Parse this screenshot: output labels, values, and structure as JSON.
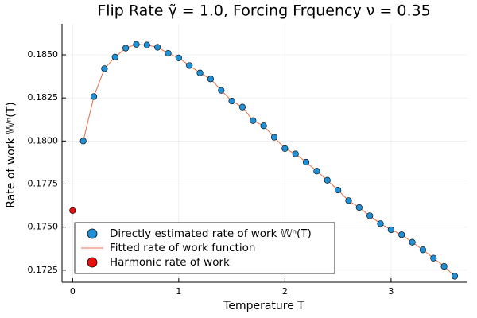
{
  "chart_data": {
    "type": "scatter",
    "title": "Flip Rate γ̃ = 1.0, Forcing Frquency ν = 0.35",
    "x_label": "Temperature T",
    "y_label": "Rate of work 𝕎ⁿ(T)",
    "xlim": [
      -0.1,
      3.72
    ],
    "ylim": [
      0.1718,
      0.1868
    ],
    "xticks": [
      0,
      1,
      2,
      3
    ],
    "yticks": [
      0.1725,
      {
        "value": 0.175,
        "label": "0.1750"
      },
      0.1775,
      {
        "value": 0.18,
        "label": "0.1800"
      },
      0.1825,
      {
        "value": 0.185,
        "label": "0.1850"
      }
    ],
    "grid": true,
    "legend": "bottom-left",
    "series": [
      {
        "name": "Directly estimated rate of work 𝕎ⁿ(T)",
        "color": "#1f8fd6",
        "style": "marker",
        "x": [
          0.1,
          0.2,
          0.3,
          0.4,
          0.5,
          0.6,
          0.7,
          0.8,
          0.9,
          1.0,
          1.1,
          1.2,
          1.3,
          1.4,
          1.5,
          1.6,
          1.7,
          1.8,
          1.9,
          2.0,
          2.1,
          2.2,
          2.3,
          2.4,
          2.5,
          2.6,
          2.7,
          2.8,
          2.9,
          3.0,
          3.1,
          3.2,
          3.3,
          3.4,
          3.5,
          3.6
        ],
        "values": [
          0.18,
          0.18258,
          0.1842,
          0.18487,
          0.18539,
          0.18561,
          0.18557,
          0.18544,
          0.18509,
          0.18482,
          0.18438,
          0.18395,
          0.1836,
          0.18294,
          0.18232,
          0.18197,
          0.18118,
          0.18088,
          0.18022,
          0.17956,
          0.17925,
          0.17877,
          0.17825,
          0.17772,
          0.17715,
          0.17654,
          0.17614,
          0.17566,
          0.1752,
          0.17485,
          0.17456,
          0.17412,
          0.17368,
          0.1732,
          0.17272,
          0.17215
        ]
      },
      {
        "name": "Fitted rate of work function",
        "color": "#e26f46",
        "style": "line",
        "x": [
          0.1,
          0.2,
          0.3,
          0.4,
          0.5,
          0.6,
          0.7,
          0.8,
          0.9,
          1.0,
          1.1,
          1.2,
          1.3,
          1.4,
          1.5,
          1.6,
          1.7,
          1.8,
          1.9,
          2.0,
          2.1,
          2.2,
          2.3,
          2.4,
          2.5,
          2.6,
          2.7,
          2.8,
          2.9,
          3.0,
          3.1,
          3.2,
          3.3,
          3.4,
          3.5,
          3.6
        ],
        "values": [
          0.18,
          0.18258,
          0.1842,
          0.18487,
          0.18539,
          0.18561,
          0.18557,
          0.18544,
          0.18509,
          0.18482,
          0.18438,
          0.18395,
          0.1836,
          0.18294,
          0.18232,
          0.18197,
          0.18118,
          0.18088,
          0.18022,
          0.17956,
          0.17925,
          0.17877,
          0.17825,
          0.17772,
          0.17715,
          0.17654,
          0.17614,
          0.17566,
          0.1752,
          0.17485,
          0.17456,
          0.17412,
          0.17368,
          0.1732,
          0.17272,
          0.17215
        ]
      },
      {
        "name": "Harmonic rate of work",
        "color": "#e8100c",
        "style": "marker",
        "x": [
          0
        ],
        "values": [
          0.17596
        ]
      }
    ]
  }
}
